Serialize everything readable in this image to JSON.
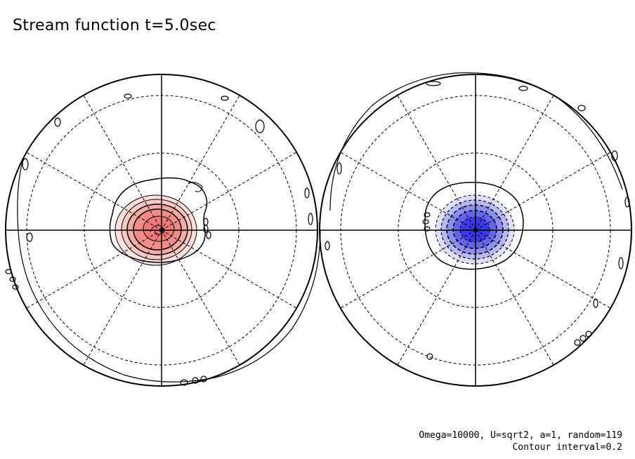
{
  "title": "Stream function t=5.0sec",
  "params": {
    "line1": "Omega=10000, U=sqrt2, a=1, random=119",
    "line2": "Contour interval=0.2"
  },
  "colors": {
    "positive_fill": "#f07a78",
    "positive_fill_light": "#f9c9c7",
    "negative_fill": "#3a3ae8",
    "negative_fill_light": "#b8b8f5",
    "lines": "#000000"
  }
}
